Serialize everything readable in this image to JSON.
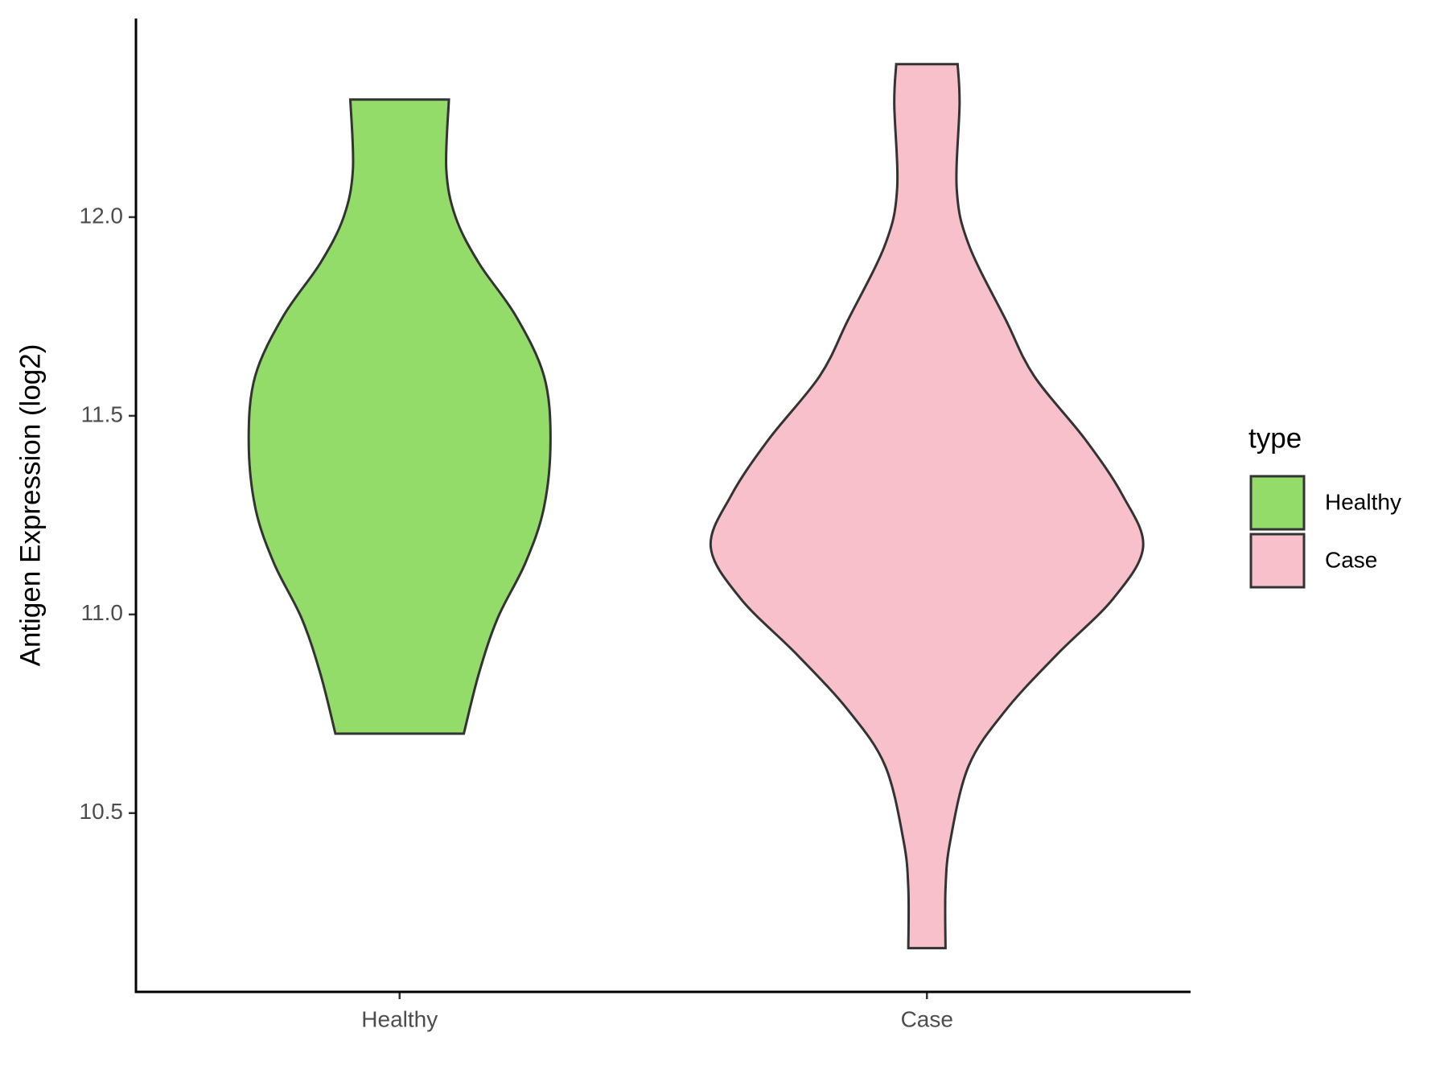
{
  "chart_data": {
    "type": "violin",
    "y_label": "Antigen Expression (log2)",
    "categories": [
      "Healthy",
      "Case"
    ],
    "legend_title": "type",
    "ylim": [
      10.05,
      12.5
    ],
    "yticks": [
      10.5,
      {
        "value": 11,
        "label": "11.0"
      },
      11.5,
      {
        "value": 12,
        "label": "12.0"
      }
    ],
    "series": [
      {
        "name": "Healthy",
        "color": "#93dc6a",
        "y": [
          12.296,
          12.12,
          12.0,
          11.885,
          11.75,
          11.6,
          11.44,
          11.27,
          11.13,
          10.99,
          10.85,
          10.7
        ],
        "density": [
          0.228,
          0.216,
          0.259,
          0.366,
          0.539,
          0.668,
          0.698,
          0.668,
          0.582,
          0.453,
          0.366,
          0.297
        ]
      },
      {
        "name": "Case",
        "color": "#f7c0cb",
        "y": [
          12.385,
          12.285,
          12.07,
          11.93,
          11.74,
          11.6,
          11.44,
          11.3,
          11.17,
          11.04,
          10.9,
          10.76,
          10.62,
          10.43,
          10.31,
          10.16
        ],
        "density": [
          0.142,
          0.151,
          0.138,
          0.194,
          0.366,
          0.496,
          0.733,
          0.905,
          1.0,
          0.862,
          0.603,
          0.366,
          0.194,
          0.108,
          0.086,
          0.086
        ]
      }
    ]
  }
}
